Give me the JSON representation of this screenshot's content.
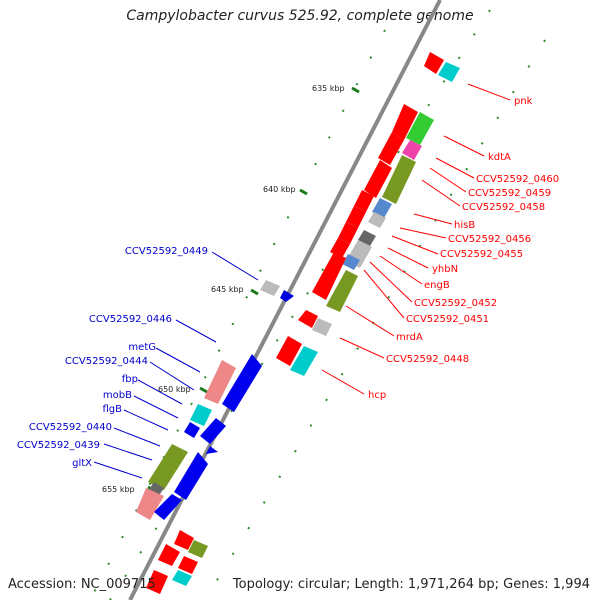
{
  "title": "Campylobacter curvus 525.92, complete genome",
  "footer": {
    "accession": "Accession: NC_009715",
    "summary": "Topology: circular; Length: 1,971,264 bp; Genes: 1,994"
  },
  "colors": {
    "backbone": "#888888",
    "right_label": "#ff0000",
    "left_label": "#0000cc",
    "tick": "#228b22"
  },
  "scale_labels": [
    "635 kbp",
    "640 kbp",
    "645 kbp",
    "650 kbp",
    "655 kbp"
  ],
  "right_labels": [
    "pnk",
    "kdtA",
    "CCV52592_0460",
    "CCV52592_0459",
    "CCV52592_0458",
    "hisB",
    "CCV52592_0456",
    "CCV52592_0455",
    "yhbN",
    "engB",
    "CCV52592_0452",
    "CCV52592_0451",
    "mrdA",
    "CCV52592_0448",
    "hcp"
  ],
  "left_labels": [
    "CCV52592_0449",
    "CCV52592_0446",
    "metG",
    "CCV52592_0444",
    "fbp",
    "mobB",
    "flgB",
    "CCV52592_0440",
    "CCV52592_0439",
    "gltX"
  ]
}
